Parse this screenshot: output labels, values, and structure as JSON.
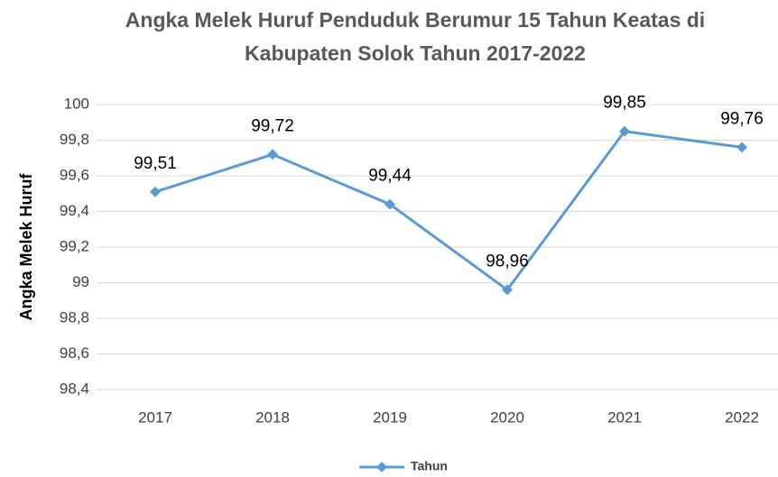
{
  "chart_data": {
    "type": "line",
    "title": [
      "Angka Melek Huruf Penduduk Berumur 15 Tahun Keatas di",
      "Kabupaten Solok Tahun 2017-2022"
    ],
    "y_label": "Angka Melek Huruf",
    "categories": [
      "2017",
      "2018",
      "2019",
      "2020",
      "2021",
      "2022"
    ],
    "series": [
      {
        "name": "Tahun",
        "color": "#5b9bd5",
        "values": [
          99.51,
          99.72,
          99.44,
          98.96,
          99.85,
          99.76
        ],
        "value_labels": [
          "99,51",
          "99,72",
          "99,44",
          "98,96",
          "99,85",
          "99,76"
        ]
      }
    ],
    "ylim": [
      98.4,
      100
    ],
    "yticks": [
      {
        "value": 98.4,
        "label": "98,4"
      },
      {
        "value": 98.6,
        "label": "98,6"
      },
      {
        "value": 98.8,
        "label": "98,8"
      },
      99,
      {
        "value": 99.2,
        "label": "99,2"
      },
      {
        "value": 99.4,
        "label": "99,4"
      },
      {
        "value": 99.6,
        "label": "99,6"
      },
      {
        "value": 99.8,
        "label": "99,8"
      },
      100
    ],
    "grid": true,
    "legend": "bottom"
  }
}
